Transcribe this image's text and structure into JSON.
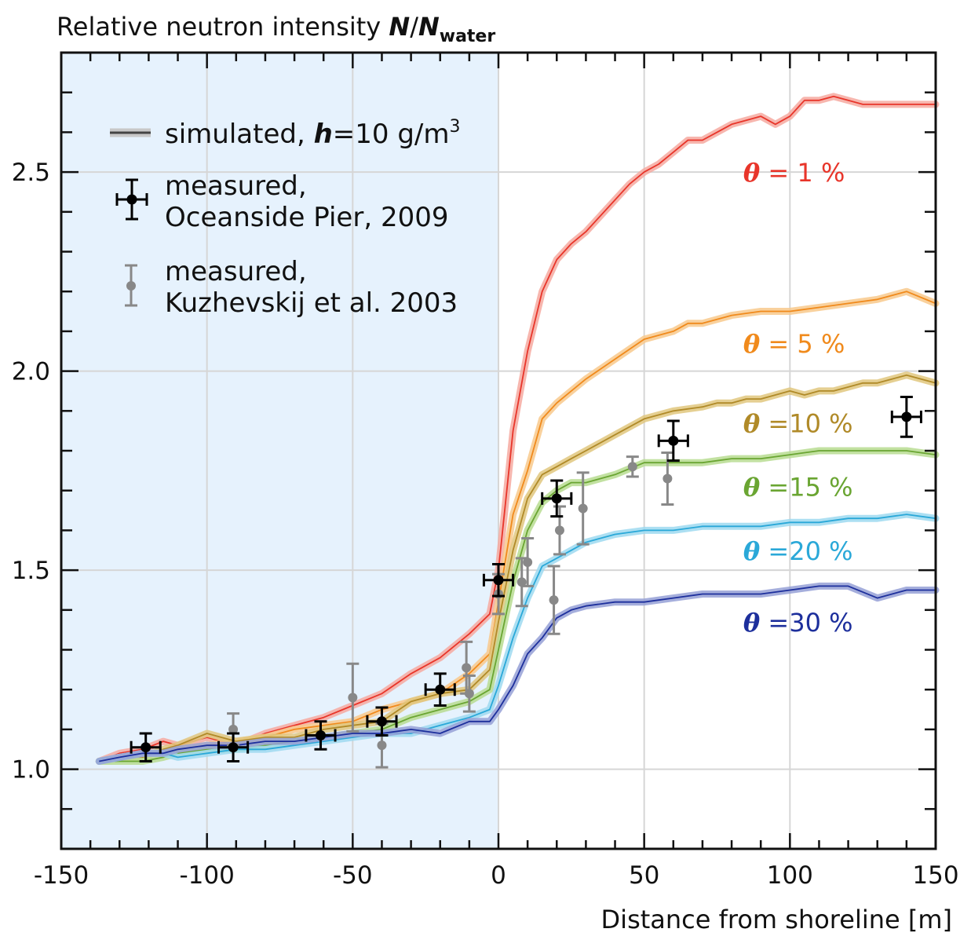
{
  "chart_data": {
    "type": "line",
    "title": "",
    "ylabel_main": "Relative neutron intensity",
    "ylabel_italic_n": "N",
    "ylabel_slash": "/",
    "ylabel_italic_n2": "N",
    "ylabel_subscript": "water",
    "xlabel": "Distance from shoreline [m]",
    "xlim": [
      -150,
      150
    ],
    "ylim": [
      0.8,
      2.8
    ],
    "x_ticks": [
      -150,
      -100,
      -50,
      0,
      50,
      100,
      150
    ],
    "x_tick_labels": [
      "-150",
      "-100",
      "-50",
      "0",
      "50",
      "100",
      "150"
    ],
    "y_ticks": [
      1.0,
      1.5,
      2.0,
      2.5
    ],
    "y_tick_labels": [
      "1.0",
      "1.5",
      "2.0",
      "2.5"
    ],
    "grid": true,
    "land_region": {
      "x_from": -150,
      "x_to": 0,
      "color": "#e6f2fd"
    },
    "legend": {
      "placement": "top-left",
      "simulated_prefix": "simulated, ",
      "simulated_h": "h",
      "simulated_suffix": "=10 g/m",
      "simulated_sup": "3",
      "oceanside_line1": "measured,",
      "oceanside_line2": "Oceanside Pier, 2009",
      "kuzhevskij_line1": "measured,",
      "kuzhevskij_line2": "Kuzhevskij et al. 2003"
    },
    "series": [
      {
        "theta": "θ",
        "label_eq": "=",
        "label_value": "1 %",
        "color": "#e8352a",
        "band": "#f6a9a0",
        "x": [
          -137,
          -130,
          -122,
          -115,
          -110,
          -100,
          -90,
          -80,
          -70,
          -60,
          -50,
          -40,
          -30,
          -20,
          -10,
          -3,
          0,
          5,
          10,
          15,
          20,
          25,
          30,
          40,
          45,
          50,
          55,
          60,
          65,
          70,
          75,
          80,
          85,
          90,
          95,
          100,
          105,
          110,
          115,
          120,
          125,
          130,
          135,
          140,
          145,
          150
        ],
        "y": [
          1.02,
          1.04,
          1.05,
          1.07,
          1.06,
          1.08,
          1.06,
          1.09,
          1.11,
          1.13,
          1.16,
          1.19,
          1.24,
          1.28,
          1.34,
          1.39,
          1.5,
          1.85,
          2.05,
          2.2,
          2.28,
          2.32,
          2.35,
          2.43,
          2.47,
          2.5,
          2.52,
          2.55,
          2.58,
          2.58,
          2.6,
          2.62,
          2.63,
          2.64,
          2.62,
          2.64,
          2.68,
          2.68,
          2.69,
          2.68,
          2.67,
          2.67,
          2.67,
          2.67,
          2.67,
          2.67
        ]
      },
      {
        "theta": "θ",
        "label_eq": "=",
        "label_value": "5 %",
        "color": "#f08a1c",
        "band": "#f8c98c",
        "x": [
          -137,
          -130,
          -122,
          -115,
          -110,
          -100,
          -90,
          -80,
          -70,
          -60,
          -50,
          -40,
          -30,
          -20,
          -10,
          -3,
          0,
          5,
          10,
          15,
          20,
          25,
          30,
          40,
          50,
          60,
          65,
          70,
          80,
          90,
          100,
          110,
          120,
          130,
          140,
          150
        ],
        "y": [
          1.02,
          1.03,
          1.04,
          1.04,
          1.05,
          1.06,
          1.07,
          1.08,
          1.1,
          1.11,
          1.12,
          1.15,
          1.17,
          1.19,
          1.24,
          1.29,
          1.42,
          1.64,
          1.75,
          1.88,
          1.92,
          1.95,
          1.98,
          2.03,
          2.08,
          2.1,
          2.12,
          2.12,
          2.14,
          2.15,
          2.15,
          2.16,
          2.17,
          2.18,
          2.2,
          2.17
        ]
      },
      {
        "theta": "θ",
        "label_eq": "=",
        "label_value": "10 %",
        "color": "#b08a28",
        "band": "#e0c77e",
        "x": [
          -137,
          -130,
          -122,
          -115,
          -110,
          -100,
          -90,
          -80,
          -70,
          -60,
          -50,
          -40,
          -30,
          -20,
          -10,
          -3,
          0,
          5,
          10,
          15,
          20,
          25,
          30,
          40,
          50,
          55,
          60,
          70,
          75,
          80,
          85,
          90,
          95,
          100,
          105,
          110,
          115,
          120,
          125,
          130,
          135,
          140,
          145,
          150
        ],
        "y": [
          1.02,
          1.03,
          1.03,
          1.05,
          1.06,
          1.09,
          1.07,
          1.08,
          1.08,
          1.1,
          1.11,
          1.12,
          1.17,
          1.19,
          1.2,
          1.25,
          1.37,
          1.55,
          1.68,
          1.74,
          1.76,
          1.78,
          1.8,
          1.84,
          1.88,
          1.89,
          1.9,
          1.91,
          1.92,
          1.92,
          1.93,
          1.93,
          1.94,
          1.95,
          1.94,
          1.95,
          1.95,
          1.96,
          1.97,
          1.97,
          1.98,
          1.99,
          1.98,
          1.97
        ]
      },
      {
        "theta": "θ",
        "label_eq": "=",
        "label_value": "15 %",
        "color": "#6aa532",
        "band": "#b7dc90",
        "x": [
          -137,
          -130,
          -122,
          -115,
          -110,
          -100,
          -90,
          -80,
          -70,
          -60,
          -50,
          -40,
          -30,
          -20,
          -10,
          -3,
          0,
          5,
          10,
          15,
          20,
          25,
          30,
          40,
          50,
          60,
          70,
          80,
          90,
          100,
          110,
          120,
          130,
          140,
          150
        ],
        "y": [
          1.02,
          1.02,
          1.02,
          1.03,
          1.04,
          1.05,
          1.05,
          1.06,
          1.07,
          1.08,
          1.09,
          1.1,
          1.13,
          1.15,
          1.17,
          1.2,
          1.3,
          1.47,
          1.6,
          1.67,
          1.7,
          1.72,
          1.72,
          1.74,
          1.77,
          1.77,
          1.77,
          1.78,
          1.78,
          1.79,
          1.8,
          1.8,
          1.8,
          1.8,
          1.79
        ]
      },
      {
        "theta": "θ",
        "label_eq": "=",
        "label_value": "20 %",
        "color": "#2aa8d8",
        "band": "#9ed9f0",
        "x": [
          -137,
          -130,
          -122,
          -115,
          -110,
          -100,
          -90,
          -80,
          -70,
          -60,
          -50,
          -40,
          -30,
          -20,
          -10,
          -3,
          0,
          5,
          10,
          15,
          20,
          25,
          30,
          40,
          50,
          60,
          70,
          80,
          90,
          100,
          110,
          120,
          130,
          140,
          150
        ],
        "y": [
          1.02,
          1.03,
          1.04,
          1.04,
          1.03,
          1.04,
          1.05,
          1.05,
          1.06,
          1.07,
          1.08,
          1.09,
          1.09,
          1.11,
          1.13,
          1.15,
          1.21,
          1.33,
          1.43,
          1.51,
          1.53,
          1.55,
          1.57,
          1.59,
          1.6,
          1.6,
          1.61,
          1.61,
          1.61,
          1.62,
          1.62,
          1.63,
          1.63,
          1.64,
          1.63
        ]
      },
      {
        "theta": "θ",
        "label_eq": "=",
        "label_value": "30 %",
        "color": "#1d2f9c",
        "band": "#95a0d6",
        "x": [
          -137,
          -130,
          -122,
          -115,
          -110,
          -100,
          -90,
          -80,
          -70,
          -60,
          -50,
          -40,
          -30,
          -20,
          -10,
          -3,
          0,
          5,
          10,
          15,
          20,
          25,
          30,
          40,
          50,
          60,
          70,
          80,
          90,
          100,
          110,
          120,
          130,
          140,
          150
        ],
        "y": [
          1.02,
          1.03,
          1.04,
          1.04,
          1.05,
          1.06,
          1.06,
          1.07,
          1.07,
          1.08,
          1.09,
          1.09,
          1.1,
          1.09,
          1.12,
          1.12,
          1.15,
          1.21,
          1.29,
          1.33,
          1.38,
          1.4,
          1.41,
          1.42,
          1.42,
          1.43,
          1.44,
          1.44,
          1.44,
          1.45,
          1.46,
          1.46,
          1.43,
          1.45,
          1.45
        ]
      }
    ],
    "oceanside": [
      {
        "x": -121,
        "y": 1.055,
        "xerr": 5,
        "yerr": 0.035
      },
      {
        "x": -91,
        "y": 1.055,
        "xerr": 5,
        "yerr": 0.035
      },
      {
        "x": -61,
        "y": 1.085,
        "xerr": 5,
        "yerr": 0.035
      },
      {
        "x": -40,
        "y": 1.12,
        "xerr": 5,
        "yerr": 0.035
      },
      {
        "x": -20,
        "y": 1.2,
        "xerr": 5,
        "yerr": 0.04
      },
      {
        "x": 0,
        "y": 1.475,
        "xerr": 5,
        "yerr": 0.04
      },
      {
        "x": 20,
        "y": 1.68,
        "xerr": 5,
        "yerr": 0.045
      },
      {
        "x": 60,
        "y": 1.825,
        "xerr": 5,
        "yerr": 0.05
      },
      {
        "x": 140,
        "y": 1.885,
        "xerr": 5,
        "yerr": 0.05
      }
    ],
    "kuzhevskij": [
      {
        "x": -91,
        "y": 1.1,
        "yerr": 0.04
      },
      {
        "x": -50,
        "y": 1.18,
        "yerr": 0.085
      },
      {
        "x": -40,
        "y": 1.06,
        "yerr": 0.055
      },
      {
        "x": -11,
        "y": 1.255,
        "yerr": 0.065
      },
      {
        "x": -10,
        "y": 1.19,
        "yerr": 0.045
      },
      {
        "x": 0,
        "y": 1.44,
        "yerr": 0.05
      },
      {
        "x": 8,
        "y": 1.47,
        "yerr": 0.06
      },
      {
        "x": 10,
        "y": 1.52,
        "yerr": 0.06
      },
      {
        "x": 19,
        "y": 1.425,
        "yerr": 0.085
      },
      {
        "x": 21,
        "y": 1.6,
        "yerr": 0.06
      },
      {
        "x": 29,
        "y": 1.655,
        "yerr": 0.09
      },
      {
        "x": 46,
        "y": 1.76,
        "yerr": 0.025
      },
      {
        "x": 58,
        "y": 1.73,
        "yerr": 0.065
      }
    ]
  }
}
